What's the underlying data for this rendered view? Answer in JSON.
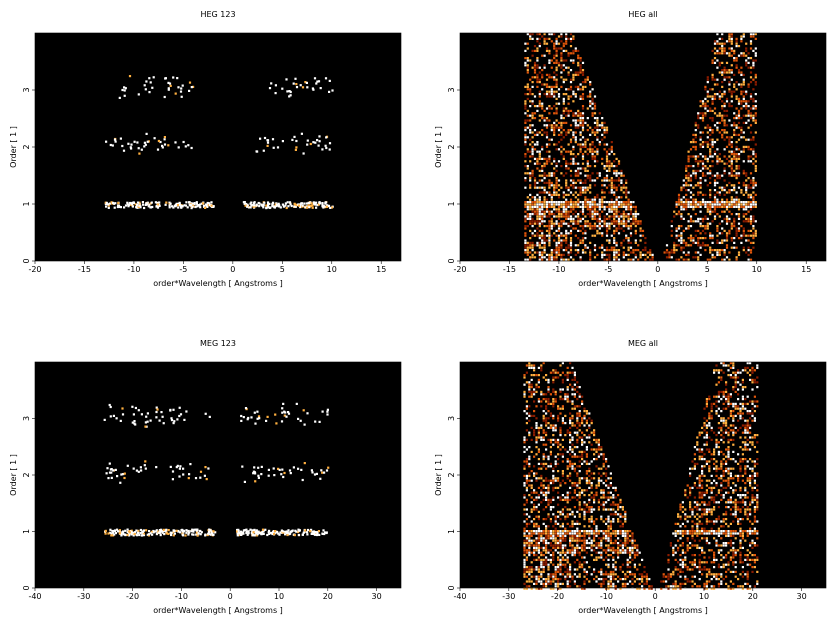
{
  "chart_data": [
    {
      "type": "heatmap",
      "title": "HEG 123",
      "xlabel": "order*Wavelength [ Angstroms ]",
      "ylabel": "Order [ 1 ]",
      "xlim": [
        -20,
        17
      ],
      "ylim": [
        0,
        4
      ],
      "xticks": [
        "-20",
        "-15",
        "-10",
        "-5",
        "0",
        "5",
        "10",
        "15"
      ],
      "yticks": [
        "0",
        "1",
        "2",
        "3"
      ],
      "background": "#000000",
      "colormap": [
        "#000000",
        "#8a1c00",
        "#e0560a",
        "#ffb040",
        "#ffffff"
      ],
      "bands": [
        {
          "order": 1,
          "x_ranges": [
            [
              -13,
              -2
            ],
            [
              1,
              10
            ]
          ],
          "intensity": "high"
        },
        {
          "order": 2,
          "x_ranges": [
            [
              -13,
              -4
            ],
            [
              2,
              10
            ]
          ],
          "intensity": "low"
        },
        {
          "order": 3,
          "x_ranges": [
            [
              -12,
              -4
            ],
            [
              3,
              10
            ]
          ],
          "intensity": "low"
        }
      ]
    },
    {
      "type": "heatmap",
      "title": "HEG all",
      "xlabel": "order*Wavelength [ Angstroms ]",
      "ylabel": "Order [ 1 ]",
      "xlim": [
        -20,
        17
      ],
      "ylim": [
        0,
        4
      ],
      "xticks": [
        "-20",
        "-15",
        "-10",
        "-5",
        "0",
        "5",
        "10",
        "15"
      ],
      "yticks": [
        "0",
        "1",
        "2",
        "3"
      ],
      "background": "#000000",
      "colormap": [
        "#000000",
        "#8a1c00",
        "#e0560a",
        "#ffb040",
        "#ffffff"
      ],
      "coverage_x": [
        -13.5,
        10
      ],
      "bright_line_order": 1
    },
    {
      "type": "heatmap",
      "title": "MEG 123",
      "xlabel": "order*Wavelength [ Angstroms ]",
      "ylabel": "Order [ 1 ]",
      "xlim": [
        -40,
        35
      ],
      "ylim": [
        0,
        4
      ],
      "xticks": [
        "-40",
        "-30",
        "-20",
        "-10",
        "0",
        "10",
        "20",
        "30"
      ],
      "yticks": [
        "0",
        "1",
        "2",
        "3"
      ],
      "background": "#000000",
      "colormap": [
        "#000000",
        "#8a1c00",
        "#e0560a",
        "#ffb040",
        "#ffffff"
      ],
      "bands": [
        {
          "order": 1,
          "x_ranges": [
            [
              -26,
              -3
            ],
            [
              1,
              20
            ]
          ],
          "intensity": "high"
        },
        {
          "order": 2,
          "x_ranges": [
            [
              -26,
              -4
            ],
            [
              2,
              20
            ]
          ],
          "intensity": "low"
        },
        {
          "order": 3,
          "x_ranges": [
            [
              -26,
              -4
            ],
            [
              2,
              20
            ]
          ],
          "intensity": "low"
        }
      ]
    },
    {
      "type": "heatmap",
      "title": "MEG all",
      "xlabel": "order*Wavelength [ Angstroms ]",
      "ylabel": "Order [ 1 ]",
      "xlim": [
        -40,
        35
      ],
      "ylim": [
        0,
        4
      ],
      "xticks": [
        "-40",
        "-30",
        "-20",
        "-10",
        "0",
        "10",
        "20",
        "30"
      ],
      "yticks": [
        "0",
        "1",
        "2",
        "3"
      ],
      "background": "#000000",
      "colormap": [
        "#000000",
        "#8a1c00",
        "#e0560a",
        "#ffb040",
        "#ffffff"
      ],
      "coverage_x": [
        -27,
        21
      ],
      "bright_line_order": 1
    }
  ]
}
